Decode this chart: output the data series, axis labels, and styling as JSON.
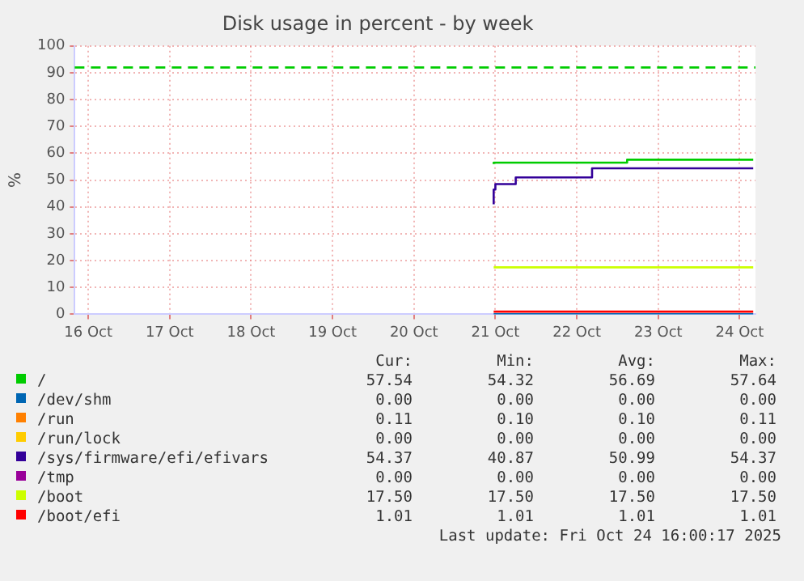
{
  "chart_data": {
    "type": "step",
    "title": "Disk usage in percent - by week",
    "ylabel": "%",
    "xlim": [
      "2025-10-16T08:00",
      "2025-10-24T16:40"
    ],
    "xticks": [
      {
        "value": "2025-10-16T12:00",
        "label": "16 Oct"
      },
      {
        "value": "2025-10-17T12:00",
        "label": "17 Oct"
      },
      {
        "value": "2025-10-18T12:00",
        "label": "18 Oct"
      },
      {
        "value": "2025-10-19T12:00",
        "label": "19 Oct"
      },
      {
        "value": "2025-10-20T12:00",
        "label": "20 Oct"
      },
      {
        "value": "2025-10-21T12:00",
        "label": "21 Oct"
      },
      {
        "value": "2025-10-22T12:00",
        "label": "22 Oct"
      },
      {
        "value": "2025-10-23T12:00",
        "label": "23 Oct"
      },
      {
        "value": "2025-10-24T12:00",
        "label": "24 Oct"
      }
    ],
    "ylim": [
      0,
      100
    ],
    "yticks": [
      0,
      10,
      20,
      30,
      40,
      50,
      60,
      70,
      80,
      90,
      100
    ],
    "grid": true,
    "legend": "bottom",
    "marker": "none",
    "line_style": "solid",
    "series": [
      {
        "name": "/",
        "color": "#00cc00",
        "x": [
          "2025-10-21T11:30",
          "2025-10-23T02:50",
          "2025-10-23T22:00",
          "2025-10-24T16:00"
        ],
        "values": [
          56.0,
          56.5,
          57.6,
          57.6
        ]
      },
      {
        "name": "/dev/shm",
        "color": "#0066b3",
        "x": [
          "2025-10-21T11:30",
          "2025-10-24T16:00"
        ],
        "values": [
          0,
          0
        ]
      },
      {
        "name": "/run",
        "color": "#ff8000"
      },
      {
        "name": "/run/lock",
        "color": "#ffcc00"
      },
      {
        "name": "/sys/firmware/efi/efivars",
        "color": "#330099",
        "x": [
          "2025-10-21T11:30",
          "2025-10-21T12:00",
          "2025-10-21T18:00",
          "2025-10-22T16:30",
          "2025-10-23T22:00",
          "2025-10-24T16:00"
        ],
        "values": [
          41,
          46.5,
          48.5,
          51,
          54.4,
          54.4
        ]
      },
      {
        "name": "/tmp",
        "color": "#990099"
      },
      {
        "name": "/boot",
        "color": "#ccff00",
        "x": [
          "2025-10-21T11:30",
          "2025-10-24T16:00"
        ],
        "values": [
          17.5,
          17.5
        ]
      },
      {
        "name": "/boot/efi",
        "color": "#ff0000",
        "x": [
          "2025-10-21T11:30",
          "2025-10-24T16:00"
        ],
        "values": [
          1.0,
          1.0
        ]
      }
    ],
    "ref_lines": [
      {
        "axis": "y",
        "value": 92,
        "color": "#00cc00",
        "line_style": "dashed"
      }
    ],
    "annotations": [
      "Cur:",
      "Min:",
      "Avg:",
      "Max:",
      "57.54",
      "54.32",
      "56.69",
      "57.64",
      "0.00",
      "0.00",
      "0.00",
      "0.00",
      "0.11",
      "0.10",
      "0.10",
      "0.11",
      "0.00",
      "0.00",
      "0.00",
      "0.00",
      "54.37",
      "40.87",
      "50.99",
      "54.37",
      "0.00",
      "0.00",
      "0.00",
      "0.00",
      "17.50",
      "17.50",
      "17.50",
      "17.50",
      "1.01",
      "1.01",
      "1.01",
      "1.01",
      "Last update: Fri Oct 24 16:00:17 2025"
    ]
  }
}
